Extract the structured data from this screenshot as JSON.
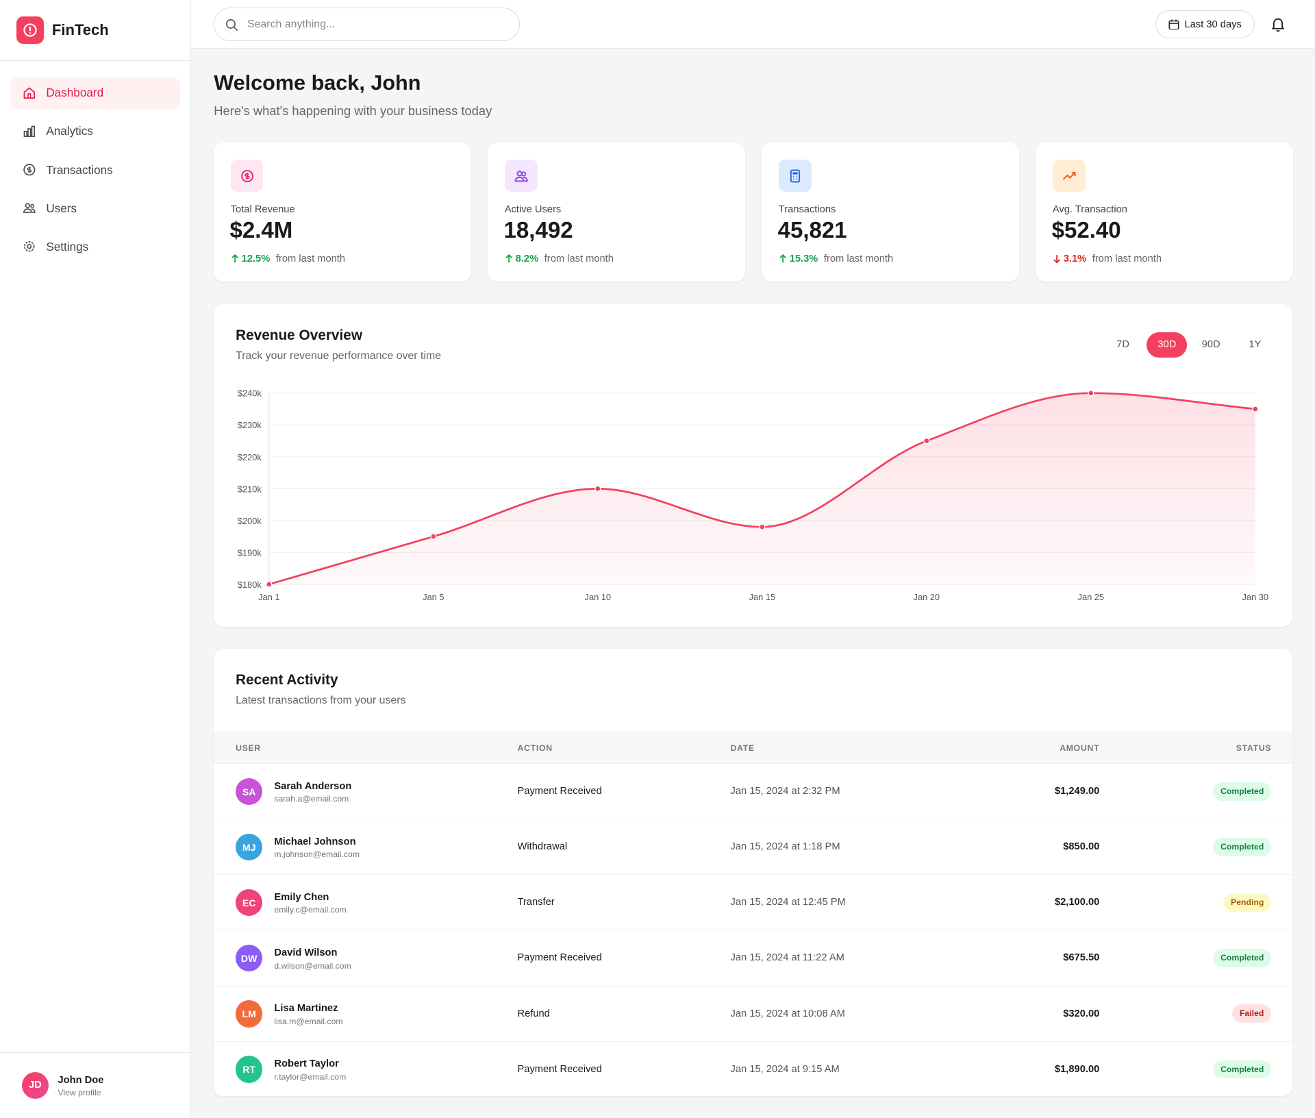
{
  "sidebar": {
    "brand": "FinTech",
    "nav": [
      "Dashboard",
      "Analytics",
      "Transactions",
      "Users",
      "Settings"
    ],
    "active_nav": 0,
    "user": {
      "initials": "JD",
      "name": "John Doe",
      "link": "View profile"
    }
  },
  "header": {
    "search_placeholder": "Search anything...",
    "date_range": "Last 30 days"
  },
  "welcome": {
    "title": "Welcome back, John",
    "subtitle": "Here's what's happening with your business today"
  },
  "stats": [
    {
      "label": "Total Revenue",
      "value": "$2.4M",
      "change": "12.5%",
      "direction": "up",
      "note": "from last month",
      "icon_bg": "#fce7f3",
      "icon_color": "#db2777"
    },
    {
      "label": "Active Users",
      "value": "18,492",
      "change": "8.2%",
      "direction": "up",
      "note": "from last month",
      "icon_bg": "#f3e8ff",
      "icon_color": "#9333ea"
    },
    {
      "label": "Transactions",
      "value": "45,821",
      "change": "15.3%",
      "direction": "up",
      "note": "from last month",
      "icon_bg": "#dbeafe",
      "icon_color": "#2563eb"
    },
    {
      "label": "Avg. Transaction",
      "value": "$52.40",
      "change": "3.1%",
      "direction": "down",
      "note": "from last month",
      "icon_bg": "#ffedd5",
      "icon_color": "#ea580c"
    }
  ],
  "range_options": [
    "7D",
    "30D",
    "90D",
    "1Y"
  ],
  "active_range": 1,
  "chart_data": {
    "type": "area",
    "title": "Revenue Overview",
    "subtitle": "Track your revenue performance over time",
    "categories": [
      "Jan 1",
      "Jan 5",
      "Jan 10",
      "Jan 15",
      "Jan 20",
      "Jan 25",
      "Jan 30"
    ],
    "values": [
      180000,
      195000,
      210000,
      198000,
      225000,
      240000,
      235000
    ],
    "color": "#f43f5e",
    "ylim": [
      180000,
      240000
    ],
    "yticks": [
      {
        "value": 180000,
        "label": "$180k"
      },
      {
        "value": 190000,
        "label": "$190k"
      },
      {
        "value": 200000,
        "label": "$200k"
      },
      {
        "value": 210000,
        "label": "$210k"
      },
      {
        "value": 220000,
        "label": "$220k"
      },
      {
        "value": 230000,
        "label": "$230k"
      },
      {
        "value": 240000,
        "label": "$240k"
      }
    ],
    "grid": true
  },
  "activity": {
    "title": "Recent Activity",
    "subtitle": "Latest transactions from your users",
    "columns": [
      "USER",
      "ACTION",
      "DATE",
      "AMOUNT",
      "STATUS"
    ],
    "rows": [
      {
        "initials": "SA",
        "name": "Sarah Anderson",
        "email": "sarah.a@email.com",
        "action": "Payment Received",
        "date": "Jan 15, 2024 at 2:32 PM",
        "amount": "$1,249.00",
        "status": "Completed",
        "avatar_color": "#c855d6",
        "status_bg": "#dcfce7",
        "status_fg": "#15803d"
      },
      {
        "initials": "MJ",
        "name": "Michael Johnson",
        "email": "m.johnson@email.com",
        "action": "Withdrawal",
        "date": "Jan 15, 2024 at 1:18 PM",
        "amount": "$850.00",
        "status": "Completed",
        "avatar_color": "#38a5e0",
        "status_bg": "#dcfce7",
        "status_fg": "#15803d"
      },
      {
        "initials": "EC",
        "name": "Emily Chen",
        "email": "emily.c@email.com",
        "action": "Transfer",
        "date": "Jan 15, 2024 at 12:45 PM",
        "amount": "$2,100.00",
        "status": "Pending",
        "avatar_color": "#f0437a",
        "status_bg": "#fef9c3",
        "status_fg": "#a16207"
      },
      {
        "initials": "DW",
        "name": "David Wilson",
        "email": "d.wilson@email.com",
        "action": "Payment Received",
        "date": "Jan 15, 2024 at 11:22 AM",
        "amount": "$675.50",
        "status": "Completed",
        "avatar_color": "#8b5cf6",
        "status_bg": "#dcfce7",
        "status_fg": "#15803d"
      },
      {
        "initials": "LM",
        "name": "Lisa Martinez",
        "email": "lisa.m@email.com",
        "action": "Refund",
        "date": "Jan 15, 2024 at 10:08 AM",
        "amount": "$320.00",
        "status": "Failed",
        "avatar_color": "#f26b3a",
        "status_bg": "#fee2e2",
        "status_fg": "#b91c1c"
      },
      {
        "initials": "RT",
        "name": "Robert Taylor",
        "email": "r.taylor@email.com",
        "action": "Payment Received",
        "date": "Jan 15, 2024 at 9:15 AM",
        "amount": "$1,890.00",
        "status": "Completed",
        "avatar_color": "#22c58b",
        "status_bg": "#dcfce7",
        "status_fg": "#15803d"
      }
    ]
  }
}
